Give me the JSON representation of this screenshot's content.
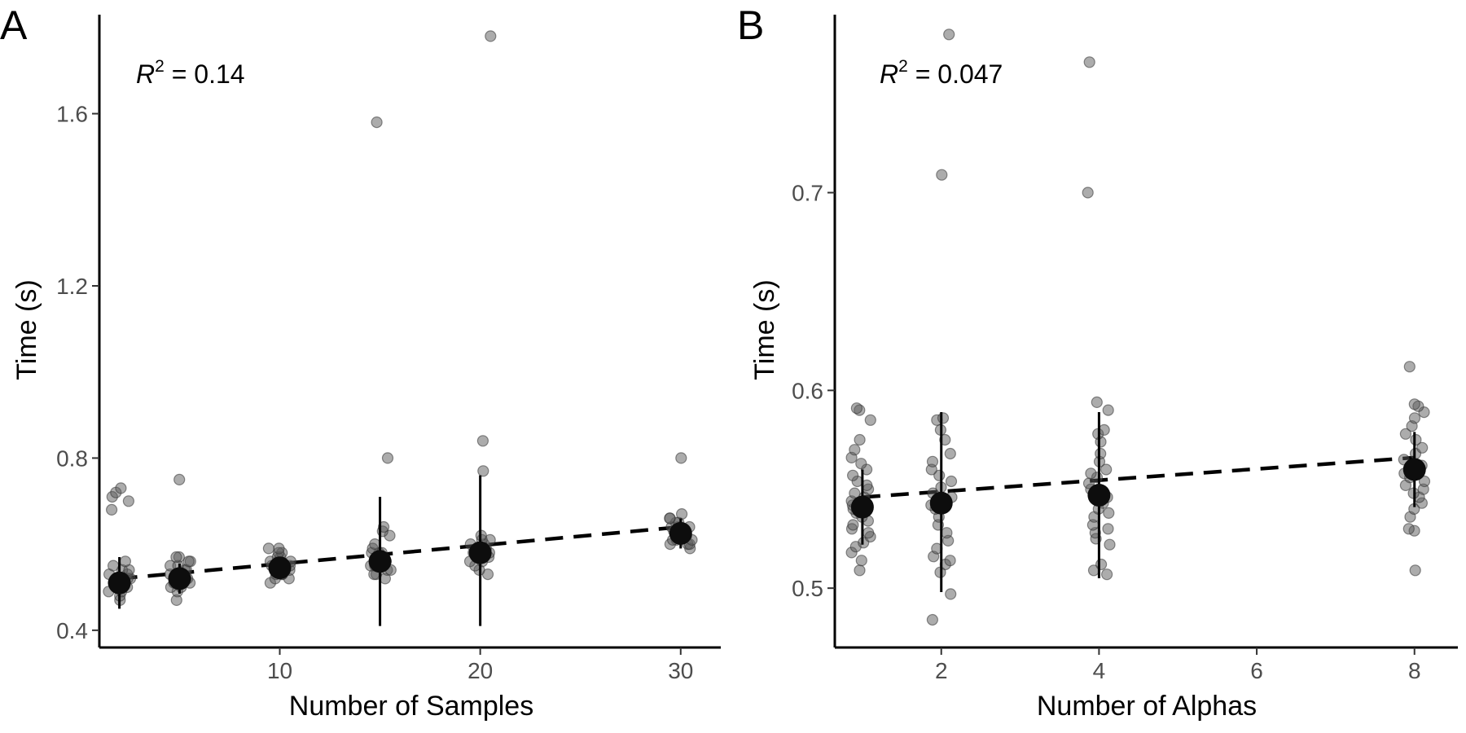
{
  "chart_data": [
    {
      "type": "scatter",
      "panel_label": "A",
      "xlabel": "Number of Samples",
      "ylabel": "Time (s)",
      "annotation": {
        "symbol": "R",
        "exponent": "2",
        "text": " = 0.14"
      },
      "xlim": [
        1,
        32
      ],
      "ylim": [
        0.36,
        1.83
      ],
      "x_ticks": [
        10,
        20,
        30
      ],
      "x_tick_labels": [
        "10",
        "20",
        "30"
      ],
      "y_ticks": [
        0.4,
        0.8,
        1.2,
        1.6
      ],
      "y_tick_labels": [
        "0.4",
        "0.8",
        "1.2",
        "1.6"
      ],
      "trend_line": {
        "x": [
          2,
          30
        ],
        "y": [
          0.52,
          0.64
        ]
      },
      "groups": [
        {
          "x": 2,
          "mean": 0.51,
          "err_low": 0.45,
          "err_high": 0.57,
          "points": [
            0.47,
            0.48,
            0.49,
            0.49,
            0.5,
            0.5,
            0.5,
            0.51,
            0.51,
            0.51,
            0.52,
            0.52,
            0.52,
            0.53,
            0.53,
            0.54,
            0.54,
            0.55,
            0.56,
            0.68,
            0.7,
            0.71,
            0.72,
            0.73
          ]
        },
        {
          "x": 5,
          "mean": 0.52,
          "err_low": 0.485,
          "err_high": 0.555,
          "points": [
            0.47,
            0.49,
            0.5,
            0.5,
            0.51,
            0.51,
            0.51,
            0.52,
            0.52,
            0.52,
            0.53,
            0.53,
            0.53,
            0.54,
            0.54,
            0.55,
            0.55,
            0.56,
            0.56,
            0.57,
            0.57,
            0.75
          ]
        },
        {
          "x": 10,
          "mean": 0.545,
          "err_low": 0.52,
          "err_high": 0.57,
          "points": [
            0.51,
            0.52,
            0.52,
            0.53,
            0.53,
            0.53,
            0.54,
            0.54,
            0.54,
            0.55,
            0.55,
            0.55,
            0.56,
            0.56,
            0.57,
            0.57,
            0.58,
            0.58,
            0.59,
            0.59
          ]
        },
        {
          "x": 15,
          "mean": 0.56,
          "err_low": 0.41,
          "err_high": 0.71,
          "points": [
            0.52,
            0.53,
            0.53,
            0.54,
            0.54,
            0.55,
            0.55,
            0.55,
            0.56,
            0.56,
            0.56,
            0.57,
            0.57,
            0.58,
            0.58,
            0.58,
            0.59,
            0.6,
            0.62,
            0.63,
            0.64,
            0.8,
            1.58
          ]
        },
        {
          "x": 20,
          "mean": 0.58,
          "err_low": 0.41,
          "err_high": 0.76,
          "points": [
            0.53,
            0.54,
            0.55,
            0.56,
            0.56,
            0.57,
            0.57,
            0.58,
            0.58,
            0.59,
            0.59,
            0.6,
            0.6,
            0.61,
            0.61,
            0.62,
            0.77,
            0.84,
            1.78
          ]
        },
        {
          "x": 30,
          "mean": 0.625,
          "err_low": 0.59,
          "err_high": 0.66,
          "points": [
            0.59,
            0.6,
            0.6,
            0.6,
            0.61,
            0.61,
            0.61,
            0.62,
            0.62,
            0.62,
            0.62,
            0.63,
            0.63,
            0.63,
            0.64,
            0.64,
            0.64,
            0.65,
            0.65,
            0.66,
            0.66,
            0.67,
            0.8
          ]
        }
      ]
    },
    {
      "type": "scatter",
      "panel_label": "B",
      "xlabel": "Number of Alphas",
      "ylabel": "Time (s)",
      "annotation": {
        "symbol": "R",
        "exponent": "2",
        "text": " = 0.047"
      },
      "xlim": [
        0.65,
        8.55
      ],
      "ylim": [
        0.47,
        0.79
      ],
      "x_ticks": [
        2,
        4,
        6,
        8
      ],
      "x_tick_labels": [
        "2",
        "4",
        "6",
        "8"
      ],
      "y_ticks": [
        0.5,
        0.6,
        0.7
      ],
      "y_tick_labels": [
        "0.5",
        "0.6",
        "0.7"
      ],
      "trend_line": {
        "x": [
          1,
          8
        ],
        "y": [
          0.546,
          0.566
        ]
      },
      "groups": [
        {
          "x": 1,
          "mean": 0.541,
          "err_low": 0.522,
          "err_high": 0.56,
          "points": [
            0.509,
            0.514,
            0.518,
            0.521,
            0.523,
            0.526,
            0.528,
            0.53,
            0.532,
            0.534,
            0.536,
            0.538,
            0.54,
            0.542,
            0.544,
            0.546,
            0.548,
            0.55,
            0.552,
            0.554,
            0.557,
            0.56,
            0.563,
            0.566,
            0.57,
            0.575,
            0.585,
            0.59,
            0.591
          ]
        },
        {
          "x": 2,
          "mean": 0.543,
          "err_low": 0.498,
          "err_high": 0.589,
          "points": [
            0.484,
            0.497,
            0.508,
            0.512,
            0.514,
            0.516,
            0.52,
            0.524,
            0.528,
            0.532,
            0.536,
            0.54,
            0.542,
            0.544,
            0.546,
            0.548,
            0.551,
            0.554,
            0.557,
            0.56,
            0.564,
            0.568,
            0.575,
            0.58,
            0.585,
            0.586,
            0.709,
            0.78
          ]
        },
        {
          "x": 4,
          "mean": 0.547,
          "err_low": 0.505,
          "err_high": 0.589,
          "points": [
            0.507,
            0.509,
            0.512,
            0.522,
            0.525,
            0.528,
            0.53,
            0.532,
            0.536,
            0.538,
            0.54,
            0.543,
            0.546,
            0.55,
            0.553,
            0.556,
            0.558,
            0.56,
            0.564,
            0.568,
            0.574,
            0.578,
            0.58,
            0.59,
            0.594,
            0.7,
            0.766
          ]
        },
        {
          "x": 8,
          "mean": 0.56,
          "err_low": 0.541,
          "err_high": 0.579,
          "points": [
            0.509,
            0.529,
            0.53,
            0.536,
            0.54,
            0.543,
            0.546,
            0.548,
            0.55,
            0.552,
            0.554,
            0.556,
            0.558,
            0.56,
            0.562,
            0.565,
            0.568,
            0.571,
            0.575,
            0.578,
            0.582,
            0.586,
            0.589,
            0.592,
            0.593,
            0.612
          ]
        }
      ]
    }
  ]
}
